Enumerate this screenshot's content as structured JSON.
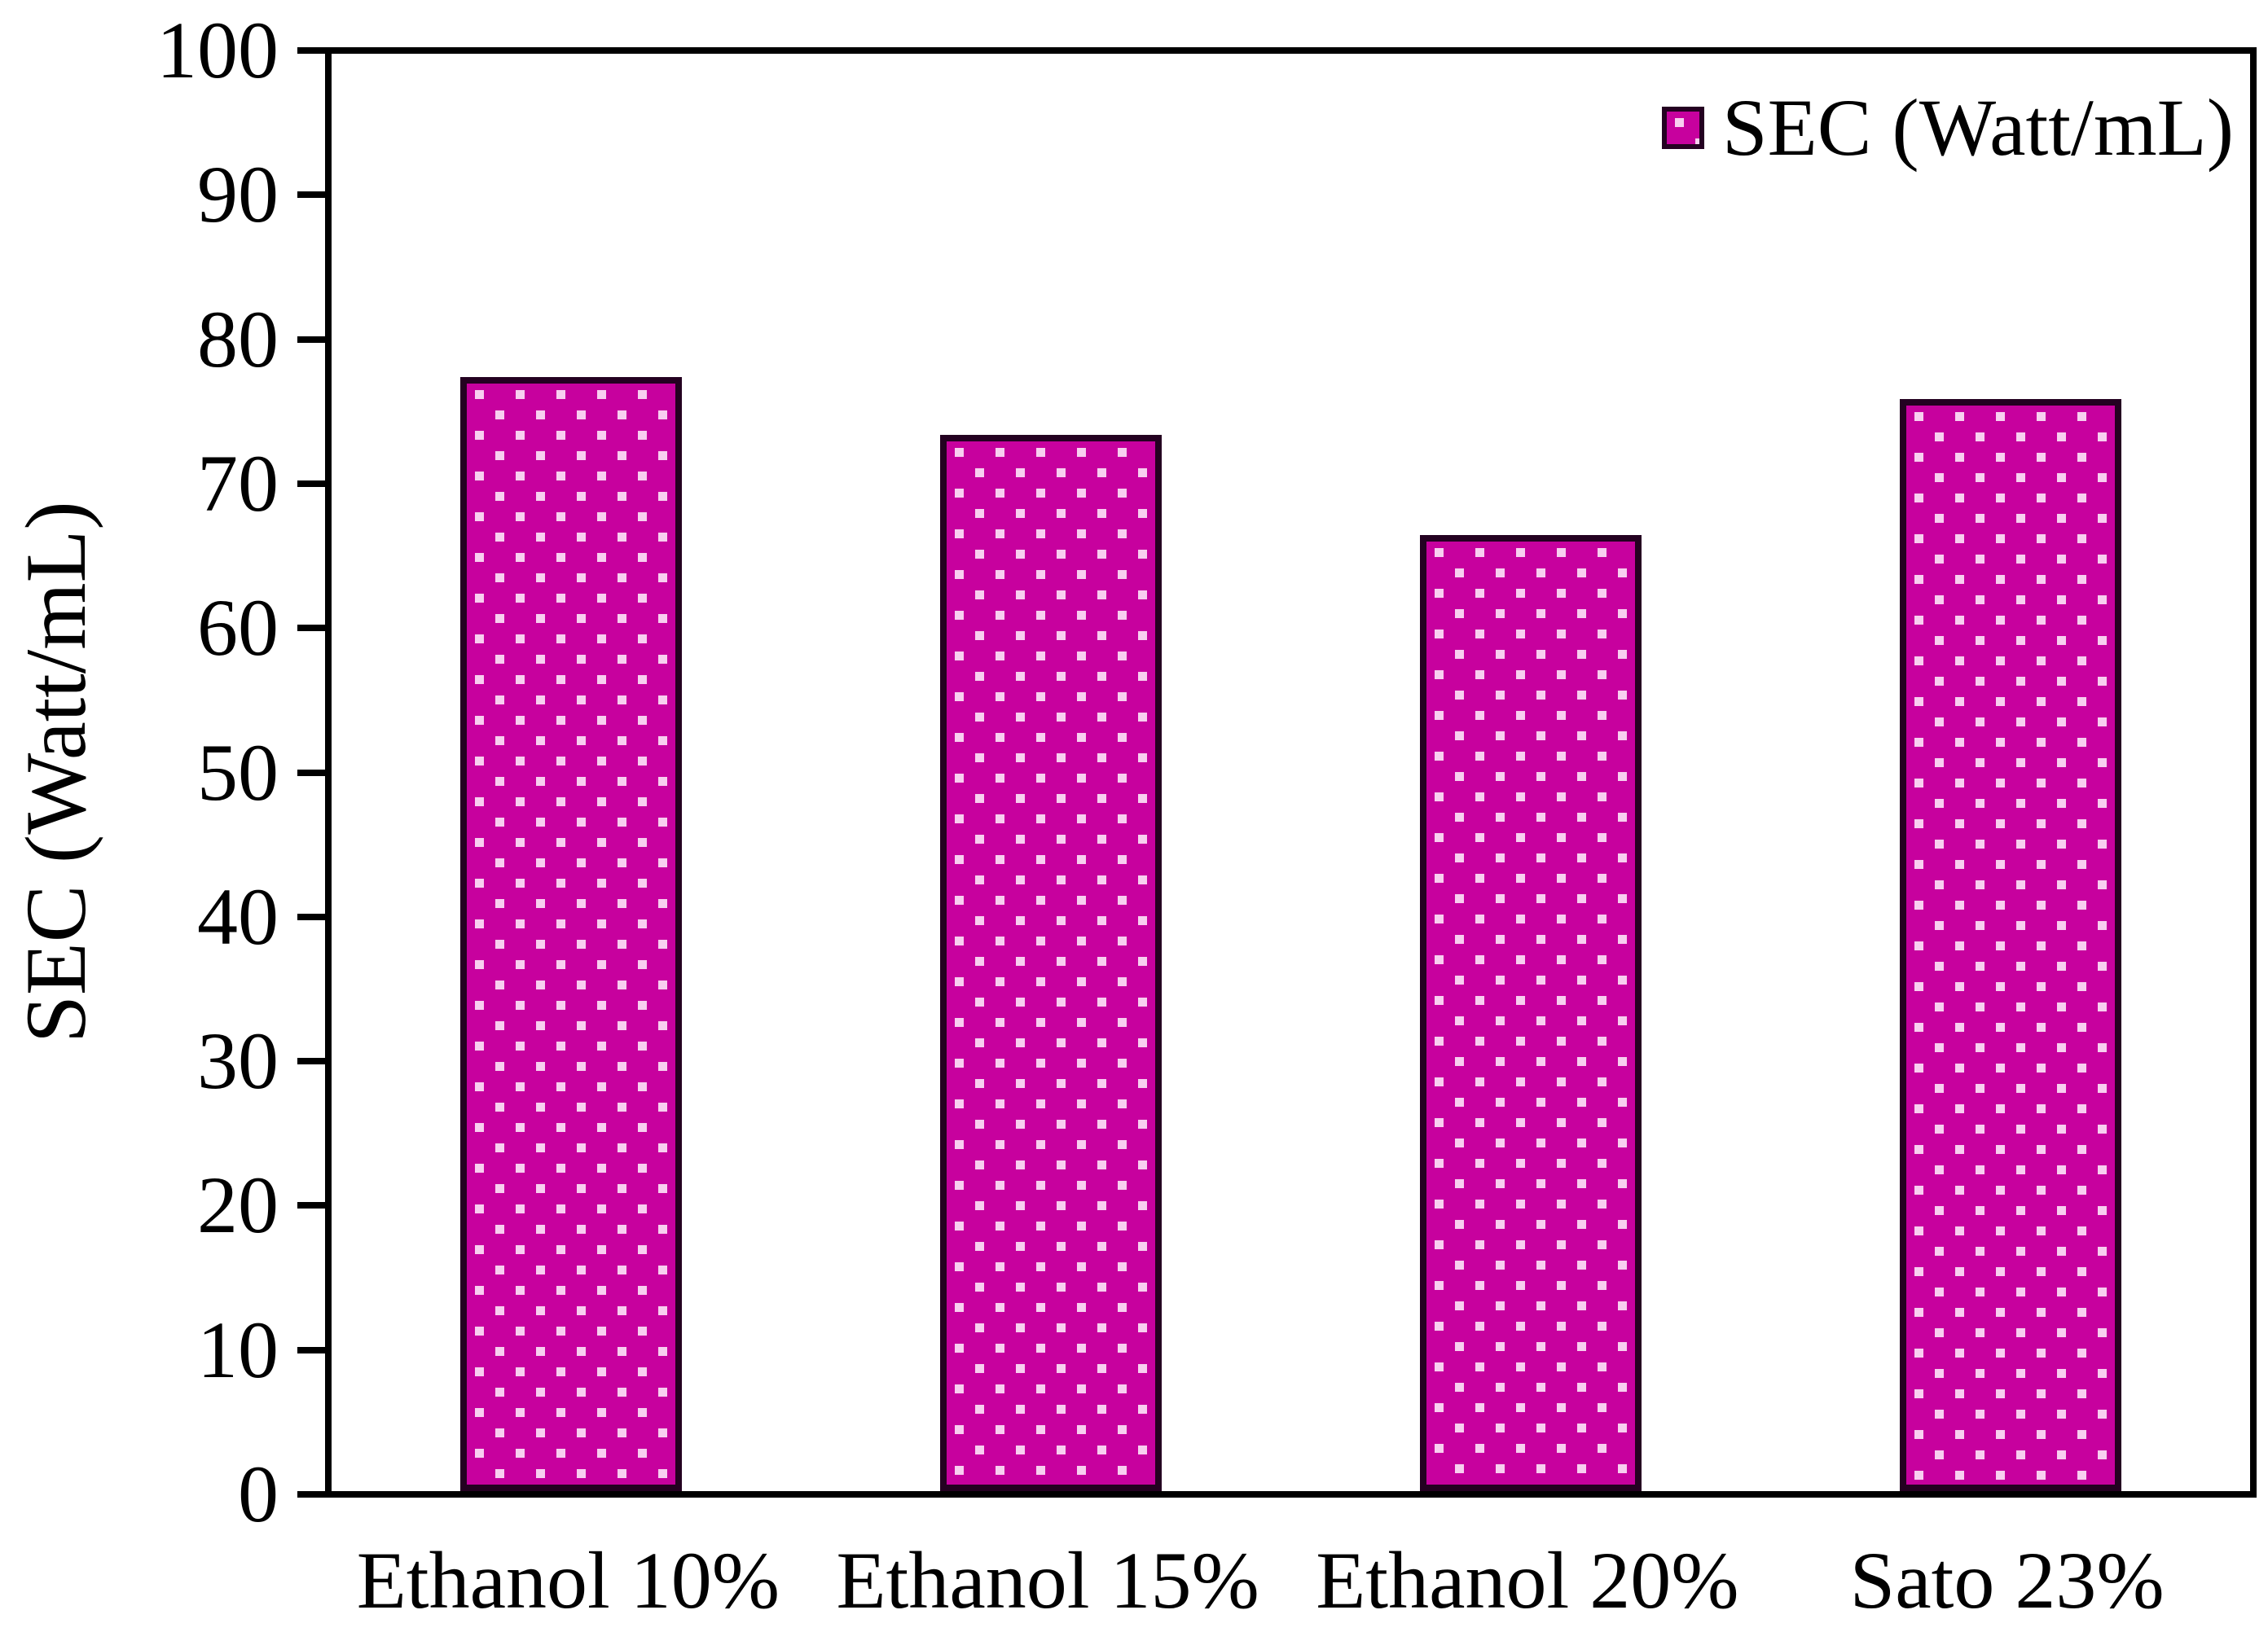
{
  "chart_data": {
    "type": "bar",
    "title": "",
    "categories": [
      "Ethanol 10%",
      "Ethanol 15%",
      "Ethanol 20%",
      "Sato 23%"
    ],
    "series": [
      {
        "name": "SEC (Watt/mL)",
        "values": [
          77.5,
          73.5,
          66.5,
          76
        ]
      }
    ],
    "xlabel": "",
    "ylabel": "SEC (Watt/mL)",
    "ylim": [
      0,
      100
    ],
    "ytick_step": 10,
    "ytick_labels": [
      "0",
      "10",
      "20",
      "30",
      "40",
      "50",
      "60",
      "70",
      "80",
      "90",
      "100"
    ],
    "grid": false,
    "legend": {
      "label": "SEC (Watt/mL)",
      "position": "top-right"
    },
    "colors": {
      "bar_fill": "#C7019E",
      "bar_dot": "#F8CFF0",
      "bar_border": "#240121",
      "axis": "#000000",
      "text": "#000000"
    }
  }
}
